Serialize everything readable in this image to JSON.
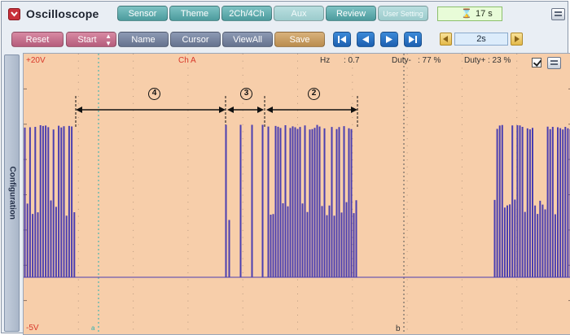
{
  "app": {
    "title": "Oscilloscope"
  },
  "top_toolbar": {
    "sensor": "Sensor",
    "theme": "Theme",
    "channels": "2Ch/4Ch",
    "aux": "Aux",
    "review": "Review",
    "user_setting": "User Setting"
  },
  "timer": {
    "value": "17 s"
  },
  "control_bar": {
    "reset": "Reset",
    "start": "Start",
    "name": "Name",
    "cursor": "Cursor",
    "view_all": "ViewAll",
    "save": "Save"
  },
  "time_div": {
    "value": "2s"
  },
  "sidebar": {
    "label": "Configuration"
  },
  "scope": {
    "y_max": "+20V",
    "y_min": "-5V",
    "channel": "Ch A",
    "hz_label": "Hz",
    "hz_value": ": 0.7",
    "duty_minus_label": "Duty-",
    "duty_minus_value": ": 77 %",
    "duty_plus_label": "Duty+",
    "duty_plus_value": ": 23 %",
    "cursor_b": "b",
    "cursor_a": "a",
    "annotations": [
      "4",
      "3",
      "2"
    ],
    "colors": {
      "background": "#f7ceaa",
      "trace": "#4b3fb0",
      "label": "#d8382a",
      "cursor": "#2ab0b0"
    }
  }
}
